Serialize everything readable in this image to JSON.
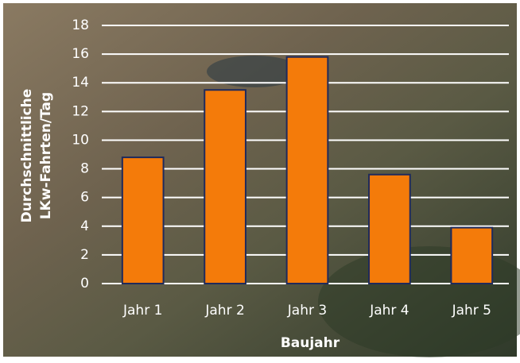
{
  "chart_data": {
    "type": "bar",
    "ylabel": [
      "Durchschnittliche",
      "LKw-Fahrten/Tag"
    ],
    "xlabel": "Baujahr",
    "categories": [
      "Jahr 1",
      "Jahr 2",
      "Jahr 3",
      "Jahr 4",
      "Jahr 5"
    ],
    "values": [
      8.8,
      13.5,
      15.8,
      7.6,
      3.9
    ],
    "color": "#f47b0a",
    "edge_color": "#1f2a5c",
    "ylim": [
      0,
      18
    ],
    "yticks": [
      0,
      2,
      4,
      6,
      8,
      10,
      12,
      14,
      16,
      18
    ],
    "grid": true
  }
}
